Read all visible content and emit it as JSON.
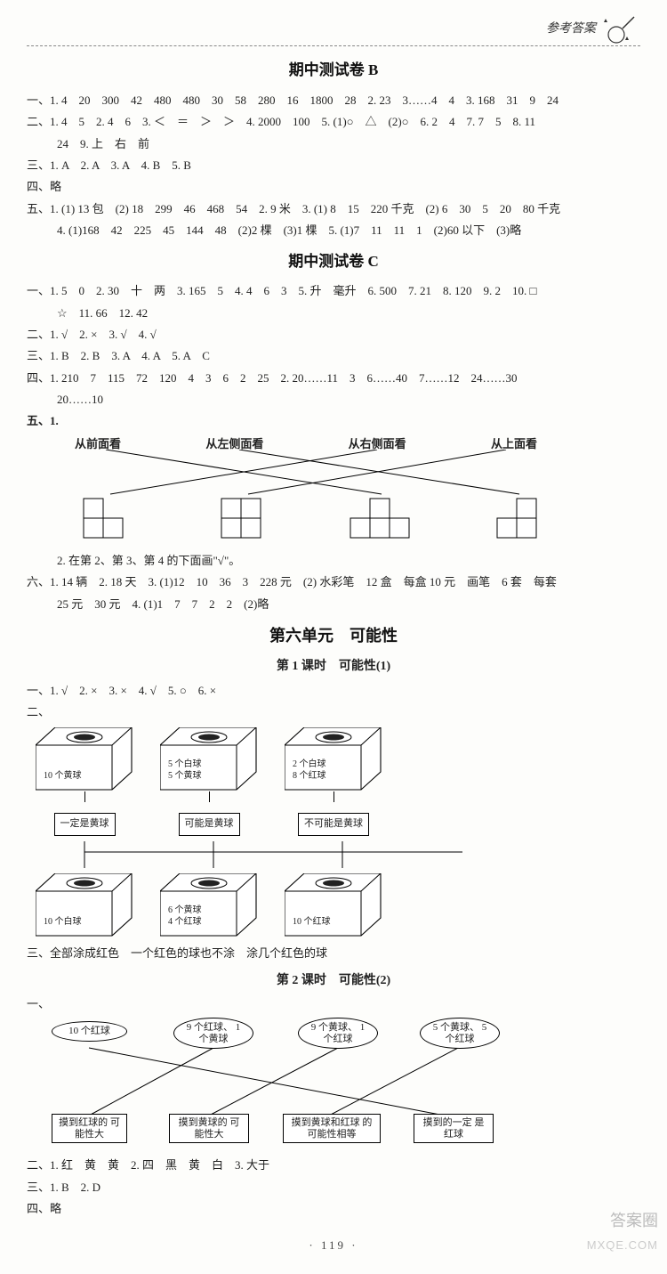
{
  "header": {
    "title": "参考答案"
  },
  "midB": {
    "title": "期中测试卷 B",
    "s1": {
      "l1": "一、1. 4　20　300　42　480　480　30　58　280　16　1800　28　2. 23　3……4　4　3. 168　31　9　24",
      "l2": "二、1. 4　5　2. 4　6　3. ＜　＝　＞　＞　4. 2000　100　5. (1)○　△　(2)○　6. 2　4　7. 7　5　8. 11",
      "l2b": "24　9. 上　右　前",
      "l3": "三、1. A　2. A　3. A　4. B　5. B",
      "l4": "四、略",
      "l5": "五、1. (1) 13 包　(2) 18　299　46　468　54　2. 9 米　3. (1) 8　15　220 千克　(2) 6　30　5　20　80 千克",
      "l5b": "4. (1)168　42　225　45　144　48　(2)2 棵　(3)1 棵　5. (1)7　11　11　1　(2)60 以下　(3)略"
    }
  },
  "midC": {
    "title": "期中测试卷 C",
    "lines": {
      "l1": "一、1. 5　0　2. 30　十　两　3. 165　5　4. 4　6　3　5. 升　毫升　6. 500　7. 21　8. 120　9. 2　10. □",
      "l1b": "☆　11. 66　12. 42",
      "l2": "二、1. √　2. ×　3. √　4. √",
      "l3": "三、1. B　2. B　3. A　4. A　5. A　C",
      "l4": "四、1. 210　7　115　72　120　4　3　6　2　25　2. 20……11　3　6……40　7……12　24……30",
      "l4b": "20……10",
      "five_prefix": "五、1.",
      "viewlabels": [
        "从前面看",
        "从左侧面看",
        "从右侧面看",
        "从上面看"
      ],
      "five2": "2. 在第 2、第 3、第 4 的下面画\"√\"。",
      "six": "六、1. 14 辆　2. 18 天　3. (1)12　10　36　3　228 元　(2) 水彩笔　12 盒　每盒 10 元　画笔　6 套　每套",
      "sixb": "25 元　30 元　4. (1)1　7　7　2　2　(2)略"
    }
  },
  "unit6": {
    "title": "第六单元　可能性",
    "lesson1": {
      "title": "第 1 课时　可能性(1)",
      "l1": "一、1. √　2. ×　3. ×　4. √　5. ○　6. ×",
      "l2p": "二、",
      "topboxes": [
        "10 个黄球",
        "5 个白球\n5 个黄球",
        "2 个白球\n8 个红球"
      ],
      "toptags": [
        "一定是黄球",
        "可能是黄球",
        "不可能是黄球"
      ],
      "botboxes": [
        "10 个白球",
        "6 个黄球\n4 个红球",
        "10 个红球"
      ],
      "l3": "三、全部涂成红色　一个红色的球也不涂　涂几个红色的球"
    },
    "lesson2": {
      "title": "第 2 课时　可能性(2)",
      "l1p": "一、",
      "ovals": [
        "10 个红球",
        "9 个红球、\n1 个黄球",
        "9 个黄球、\n1 个红球",
        "5 个黄球、\n5 个红球"
      ],
      "rects": [
        "摸到红球的\n可能性大",
        "摸到黄球的\n可能性大",
        "摸到黄球和红球\n的可能性相等",
        "摸到的一定\n是红球"
      ],
      "l2": "二、1. 红　黄　黄　2. 四　黑　黄　白　3. 大于",
      "l3": "三、1. B　2. D",
      "l4": "四、略"
    }
  },
  "pageno": "· 119 ·",
  "wm": {
    "a": "答案圈",
    "b": "MXQE.COM"
  },
  "colors": {
    "ink": "#222",
    "line": "#000"
  }
}
